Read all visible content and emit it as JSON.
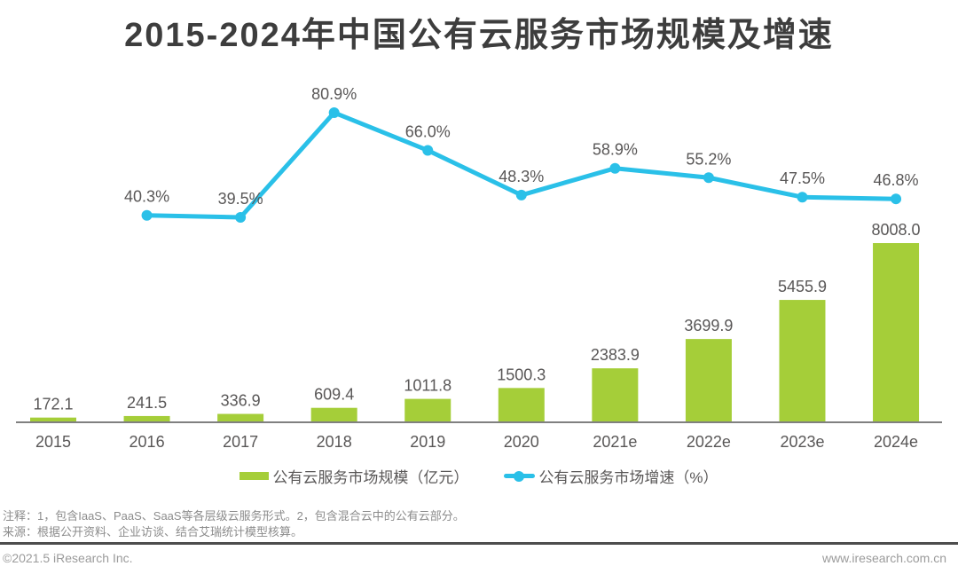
{
  "title": "2015-2024年中国公有云服务市场规模及增速",
  "chart_data": {
    "type": "combo",
    "categories": [
      "2015",
      "2016",
      "2017",
      "2018",
      "2019",
      "2020",
      "2021e",
      "2022e",
      "2023e",
      "2024e"
    ],
    "series": [
      {
        "name": "公有云服务市场规模（亿元）",
        "type": "bar",
        "color": "#a5ce39",
        "values": [
          172.1,
          241.5,
          336.9,
          609.4,
          1011.8,
          1500.3,
          2383.9,
          3699.9,
          5455.9,
          8008.0
        ]
      },
      {
        "name": "公有云服务市场增速（%）",
        "type": "line",
        "color": "#2ac0e8",
        "values": [
          null,
          40.3,
          39.5,
          80.9,
          66.0,
          48.3,
          58.9,
          55.2,
          47.5,
          46.8
        ]
      }
    ],
    "title": "2015-2024年中国公有云服务市场规模及增速",
    "xlabel": "",
    "ylabel": "",
    "value_axis_visible": false,
    "grid": false,
    "legend_position": "bottom",
    "bar_label_decimals": 1,
    "line_label_suffix": "%"
  },
  "notes": {
    "line1": "注释：1，包含IaaS、PaaS、SaaS等各层级云服务形式。2，包含混合云中的公有云部分。",
    "line2": "来源：根据公开资料、企业访谈、结合艾瑞统计模型核算。"
  },
  "footer": {
    "copyright": "©2021.5 iResearch Inc.",
    "url": "www.iresearch.com.cn"
  },
  "colors": {
    "bar": "#a5ce39",
    "line": "#2ac0e8",
    "label_text": "#595757",
    "axis": "#808080",
    "separator": "#4d4d4d"
  }
}
